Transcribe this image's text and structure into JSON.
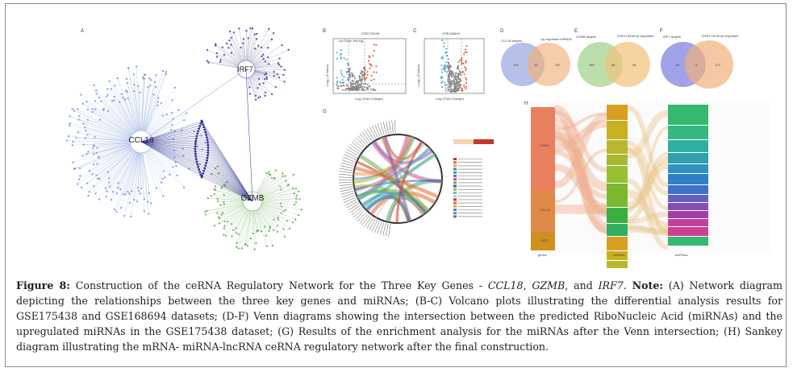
{
  "figure": {
    "panels": [
      "A",
      "B",
      "C",
      "D",
      "E",
      "F",
      "G",
      "H"
    ],
    "network": {
      "hubs": [
        "IRF7",
        "CCL18",
        "GZMB"
      ]
    },
    "volcano_b": {
      "title": "GSE175438",
      "xlabel": "Log₂ (Fold Change)",
      "ylabel": "-Log₁₀ (P value)",
      "legend": "Up  Down  Not sig."
    },
    "volcano_c": {
      "title": "GSE168694",
      "xlabel": "Log₂ (Fold Change)",
      "ylabel": "-Log₁₀ (P value)"
    },
    "venn_d": {
      "left_label": "CCL18 targets",
      "right_label": "Up-regulated miRNAs",
      "left": "109",
      "overlap": "26",
      "right": "157"
    },
    "venn_e": {
      "left_label": "GZMB targets",
      "right_label": "GSE175438 up-regulated",
      "left": "389",
      "overlap": "66",
      "right": "58"
    },
    "venn_f": {
      "left_label": "IRF7 targets",
      "right_label": "GSE175438 up-regulated",
      "left": "60",
      "overlap": "9",
      "right": "173"
    },
    "sankey": {
      "axis": [
        "genes",
        "miRNAs",
        "lncRNAs"
      ],
      "genes": [
        "GZMB",
        "CCL18",
        "IRF7"
      ]
    }
  },
  "caption": {
    "figure_label": "Figure 8:",
    "text1": " Construction of the ceRNA Regulatory Network for the Three Key Genes - ",
    "gene1": "CCL18",
    "sep1": ", ",
    "gene2": "GZMB",
    "sep2": ", and ",
    "gene3": "IRF7",
    "text2": ". ",
    "note_label": "Note:",
    "text3": " (A) Network diagram depicting the relationships between the three key genes and miRNAs; (B-C) Volcano plots illustrating the differential analysis results for GSE175438 and GSE168694 datasets; (D-F) Venn diagrams showing the intersection between the predicted RiboNucleic Acid (miRNAs) and the upregulated miRNAs in the GSE175438 dataset; (G) Results of the enrichment analysis for the miRNAs after the Venn intersection; (H) Sankey diagram illustrating the mRNA- miRNA-lncRNA ceRNA regulatory network after the final construction."
  },
  "colors": {
    "blue": "#2b2f8e",
    "green": "#4a9a3a",
    "orange": "#e8692a",
    "venn_blue": "#8fa0e0",
    "venn_orange": "#f2b07a"
  }
}
